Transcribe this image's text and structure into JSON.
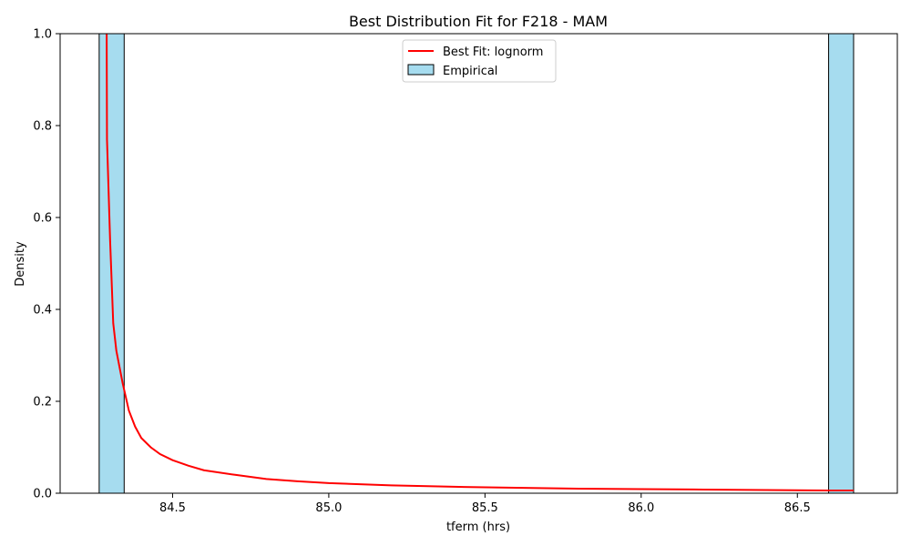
{
  "chart_data": {
    "type": "bar",
    "title": "Best Distribution Fit for F218 - MAM",
    "xlabel": "tferm (hrs)",
    "ylabel": "Density",
    "xlim": [
      84.14,
      86.82
    ],
    "ylim": [
      0,
      1.0
    ],
    "x_ticks": [
      84.5,
      85.0,
      85.5,
      86.0,
      86.5
    ],
    "x_tick_labels": [
      "84.5",
      "85.0",
      "85.5",
      "86.0",
      "86.5"
    ],
    "y_ticks": [
      0.0,
      0.2,
      0.4,
      0.6,
      0.8,
      1.0
    ],
    "y_tick_labels": [
      "0.0",
      "0.2",
      "0.4",
      "0.6",
      "0.8",
      "1.0"
    ],
    "grid": false,
    "legend_position": "top-center",
    "colors": {
      "fit_line": "#ff0000",
      "hist_fill": "#a6dcef",
      "hist_edge": "#000000"
    },
    "series": [
      {
        "name": "Best Fit: lognorm",
        "kind": "line",
        "x": [
          84.289,
          84.29,
          84.3,
          84.31,
          84.32,
          84.34,
          84.36,
          84.38,
          84.4,
          84.43,
          84.46,
          84.5,
          84.55,
          84.6,
          84.7,
          84.8,
          84.9,
          85.0,
          85.2,
          85.4,
          85.6,
          85.8,
          86.0,
          86.2,
          86.4,
          86.6,
          86.68
        ],
        "y": [
          1.0,
          0.77,
          0.55,
          0.37,
          0.31,
          0.24,
          0.18,
          0.145,
          0.12,
          0.1,
          0.085,
          0.072,
          0.06,
          0.05,
          0.04,
          0.031,
          0.026,
          0.022,
          0.017,
          0.014,
          0.012,
          0.01,
          0.009,
          0.008,
          0.007,
          0.006,
          0.006
        ]
      },
      {
        "name": "Empirical",
        "kind": "histogram",
        "bins": [
          {
            "x0": 84.265,
            "x1": 84.345,
            "value": 1.0
          },
          {
            "x0": 86.6,
            "x1": 86.68,
            "value": 1.0
          }
        ]
      }
    ]
  }
}
